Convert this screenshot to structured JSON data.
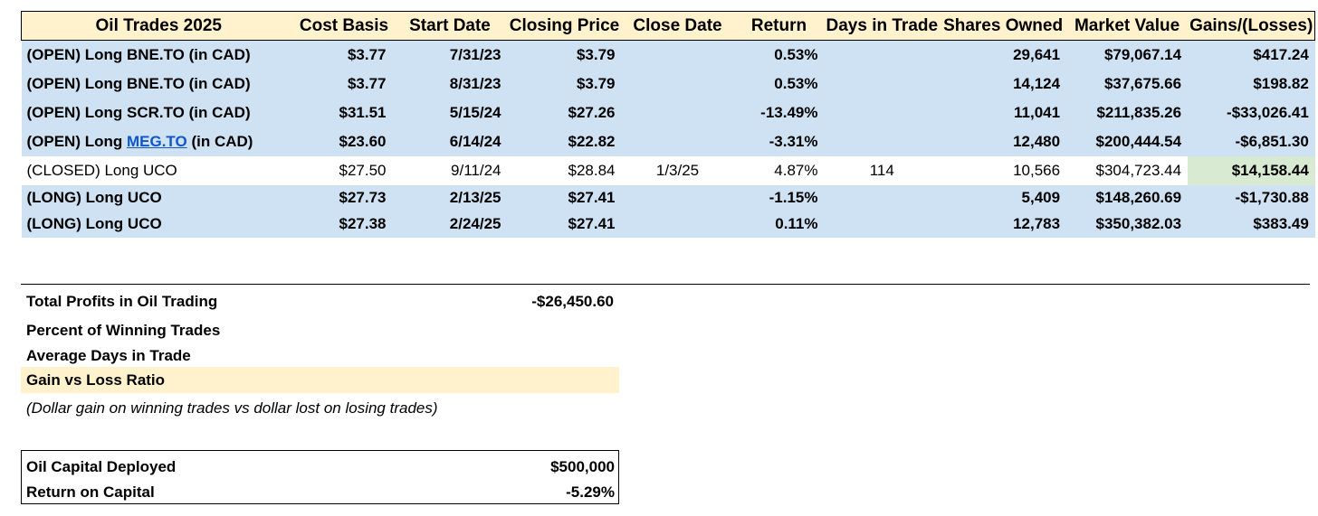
{
  "table": {
    "headers": [
      "Oil Trades 2025",
      "Cost Basis",
      "Start Date",
      "Closing Price",
      "Close Date",
      "Return",
      "Days in Trade",
      "Shares Owned",
      "Market Value",
      "Gains/(Losses)"
    ],
    "rows": [
      {
        "name_pre": "(OPEN) Long BNE.TO (in CAD)",
        "name_link": "",
        "name_post": "",
        "cost_basis": "$3.77",
        "start_date": "7/31/23",
        "closing_price": "$3.79",
        "close_date": "",
        "return": "0.53%",
        "days": "",
        "shares": "29,641",
        "market_value": "$79,067.14",
        "gains": "$417.24"
      },
      {
        "name_pre": "(OPEN) Long BNE.TO (in CAD)",
        "name_link": "",
        "name_post": "",
        "cost_basis": "$3.77",
        "start_date": "8/31/23",
        "closing_price": "$3.79",
        "close_date": "",
        "return": "0.53%",
        "days": "",
        "shares": "14,124",
        "market_value": "$37,675.66",
        "gains": "$198.82"
      },
      {
        "name_pre": "(OPEN) Long SCR.TO (in CAD)",
        "name_link": "",
        "name_post": "",
        "cost_basis": "$31.51",
        "start_date": "5/15/24",
        "closing_price": "$27.26",
        "close_date": "",
        "return": "-13.49%",
        "days": "",
        "shares": "11,041",
        "market_value": "$211,835.26",
        "gains": "-$33,026.41"
      },
      {
        "name_pre": "(OPEN) Long ",
        "name_link": "MEG.TO",
        "name_post": " (in CAD)",
        "cost_basis": "$23.60",
        "start_date": "6/14/24",
        "closing_price": "$22.82",
        "close_date": "",
        "return": "-3.31%",
        "days": "",
        "shares": "12,480",
        "market_value": "$200,444.54",
        "gains": "-$6,851.30"
      },
      {
        "name_pre": "(CLOSED) Long UCO",
        "name_link": "",
        "name_post": "",
        "cost_basis": "$27.50",
        "start_date": "9/11/24",
        "closing_price": "$28.84",
        "close_date": "1/3/25",
        "return": "4.87%",
        "days": "114",
        "shares": "10,566",
        "market_value": "$304,723.44",
        "gains": "$14,158.44"
      },
      {
        "name_pre": "(LONG) Long UCO",
        "name_link": "",
        "name_post": "",
        "cost_basis": "$27.73",
        "start_date": "2/13/25",
        "closing_price": "$27.41",
        "close_date": "",
        "return": "-1.15%",
        "days": "",
        "shares": "5,409",
        "market_value": "$148,260.69",
        "gains": "-$1,730.88"
      },
      {
        "name_pre": "(LONG) Long UCO",
        "name_link": "",
        "name_post": "",
        "cost_basis": "$27.38",
        "start_date": "2/24/25",
        "closing_price": "$27.41",
        "close_date": "",
        "return": "0.11%",
        "days": "",
        "shares": "12,783",
        "market_value": "$350,382.03",
        "gains": "$383.49"
      }
    ]
  },
  "summary": {
    "total_profits_label": "Total Profits in Oil Trading",
    "total_profits_value": "-$26,450.60",
    "winning_pct_label": "Percent of Winning Trades",
    "avg_days_label": "Average Days in Trade",
    "gain_loss_label": "Gain vs Loss Ratio",
    "note": "(Dollar gain on winning trades vs dollar lost on losing trades)"
  },
  "capital": {
    "deployed_label": "Oil Capital Deployed",
    "deployed_value": "$500,000",
    "return_label": "Return on Capital",
    "return_value": "-5.29%"
  },
  "colors": {
    "header_bg": "#fff2cc",
    "open_row_bg": "#cfe2f3",
    "gain_highlight": "#d9ead3",
    "link": "#1155cc"
  }
}
